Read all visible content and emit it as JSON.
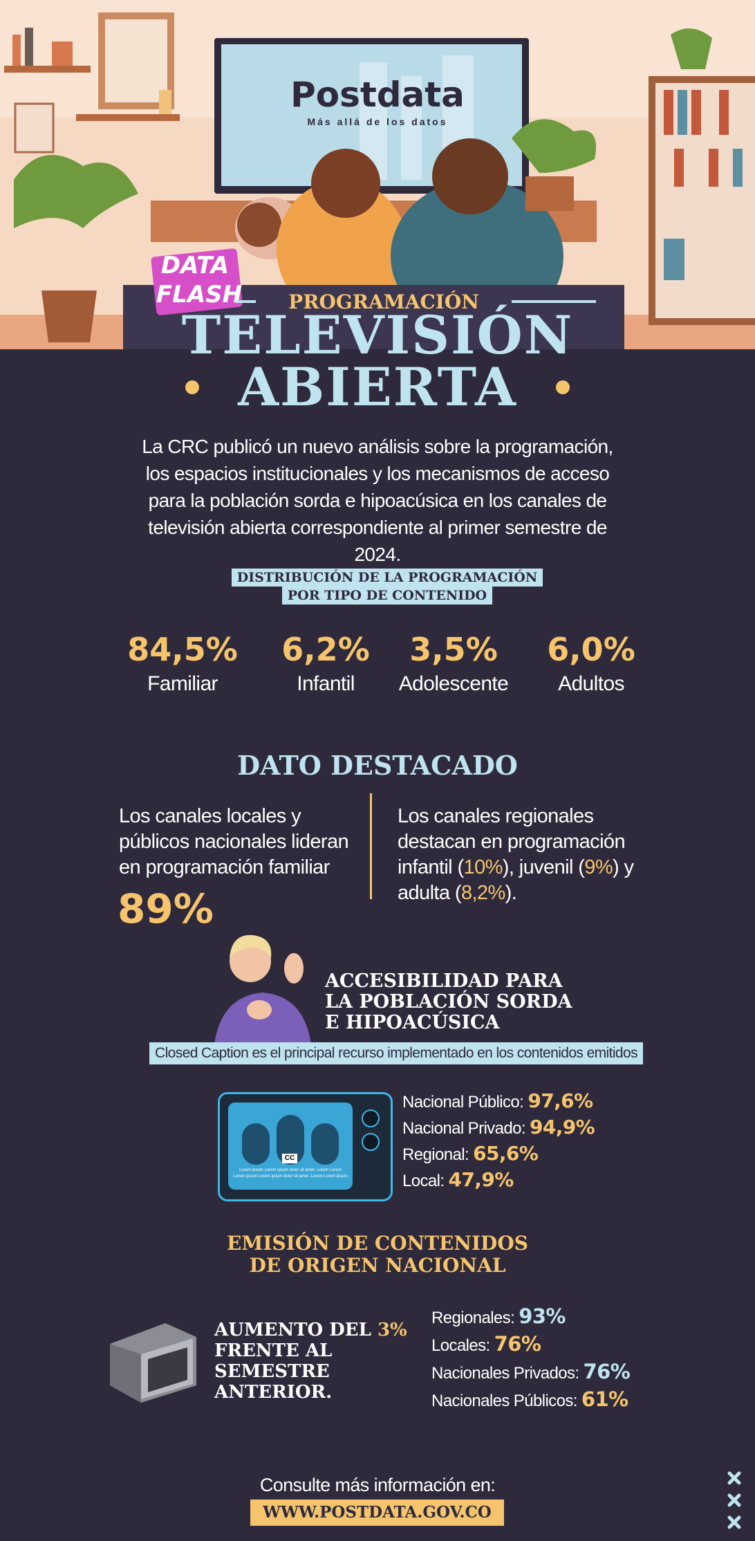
{
  "header": {
    "logo": "Postdata",
    "tagline": "Más allá de los datos",
    "badge": [
      "DATA",
      "FLASH"
    ],
    "kicker": "PROGRAMACIÓN",
    "title_1": "TELEVISIÓN",
    "title_2": "ABIERTA"
  },
  "intro": "La CRC publicó un nuevo análisis sobre la programación, los espacios institucionales y los mecanismos de acceso para la población sorda e hipoacúsica en los canales de televisión abierta correspondiente al primer semestre de 2024.",
  "distribution": {
    "title_lines": [
      "DISTRIBUCIÓN DE LA PROGRAMACIÓN",
      "POR TIPO DE CONTENIDO"
    ],
    "items": [
      {
        "value": "84,5%",
        "label": "Familiar"
      },
      {
        "value": "6,2%",
        "label": "Infantil"
      },
      {
        "value": "3,5%",
        "label": "Adolescente"
      },
      {
        "value": "6,0%",
        "label": "Adultos"
      }
    ]
  },
  "highlight": {
    "title": "DATO DESTACADO",
    "left_text": "Los canales locales y públicos nacionales lideran en programación familiar",
    "left_value": "89%",
    "right_parts": [
      "Los canales regionales destacan en programación infantil (",
      "10%",
      "), juvenil (",
      "9%",
      ") y adulta (",
      "8,2%",
      ")."
    ]
  },
  "accessibility": {
    "title_lines": [
      "ACCESIBILIDAD PARA",
      "LA POBLACIÓN SORDA",
      "E HIPOACÚSICA"
    ],
    "caption": "Closed Caption es el principal recurso implementado en los contenidos emitidos",
    "screen_badge": "CC",
    "screen_lines": [
      "Lorem ipsum Lorem ipsum dolor sit amet. Lorem Lorem",
      "Lorem ipsum Lorem ipsum dolor sit amet. Lorem Lorem ipsum"
    ],
    "items": [
      {
        "label": "Nacional Público:",
        "value": "97,6%"
      },
      {
        "label": "Nacional Privado:",
        "value": "94,9%"
      },
      {
        "label": "Regional:",
        "value": "65,6%"
      },
      {
        "label": "Local:",
        "value": "47,9%"
      }
    ]
  },
  "national": {
    "title_lines": [
      "EMISIÓN DE CONTENIDOS",
      "DE ORIGEN NACIONAL"
    ],
    "statement_parts": [
      "AUMENTO DEL",
      "3%",
      "FRENTE AL SEMESTRE ANTERIOR."
    ],
    "items": [
      {
        "label": "Regionales:",
        "value": "93%"
      },
      {
        "label": "Locales:",
        "value": "76%"
      },
      {
        "label": "Nacionales Privados:",
        "value": "76%"
      },
      {
        "label": "Nacionales Públicos:",
        "value": "61%"
      }
    ]
  },
  "footer": {
    "text": "Consulte más información en:",
    "url": "WWW.POSTDATA.GOV.CO"
  }
}
